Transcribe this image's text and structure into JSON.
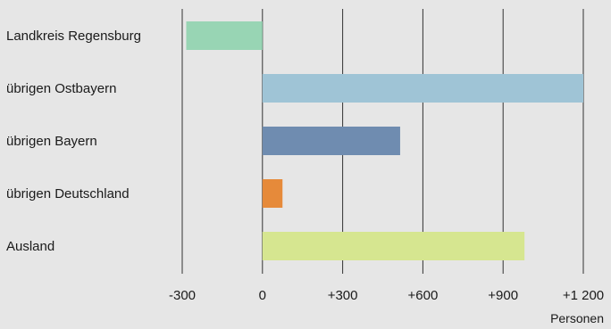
{
  "chart_data": {
    "type": "bar",
    "orientation": "horizontal",
    "categories": [
      "Landkreis Regensburg",
      "übrigen Ostbayern",
      "übrigen Bayern",
      "übrigen Deutschland",
      "Ausland"
    ],
    "values": [
      -285,
      1200,
      515,
      75,
      980
    ],
    "colors": [
      "#98d5b4",
      "#9fc4d6",
      "#6f8cb0",
      "#e68a3a",
      "#d6e690"
    ],
    "xlim": [
      -300,
      1200
    ],
    "ticks": [
      {
        "value": -300,
        "label": "-300"
      },
      {
        "value": 0,
        "label": "0"
      },
      {
        "value": 300,
        "label": "+300"
      },
      {
        "value": 600,
        "label": "+600"
      },
      {
        "value": 900,
        "label": "+900"
      },
      {
        "value": 1200,
        "label": "+1 200"
      }
    ],
    "xlabel": "Personen",
    "title": "",
    "grid": true
  }
}
